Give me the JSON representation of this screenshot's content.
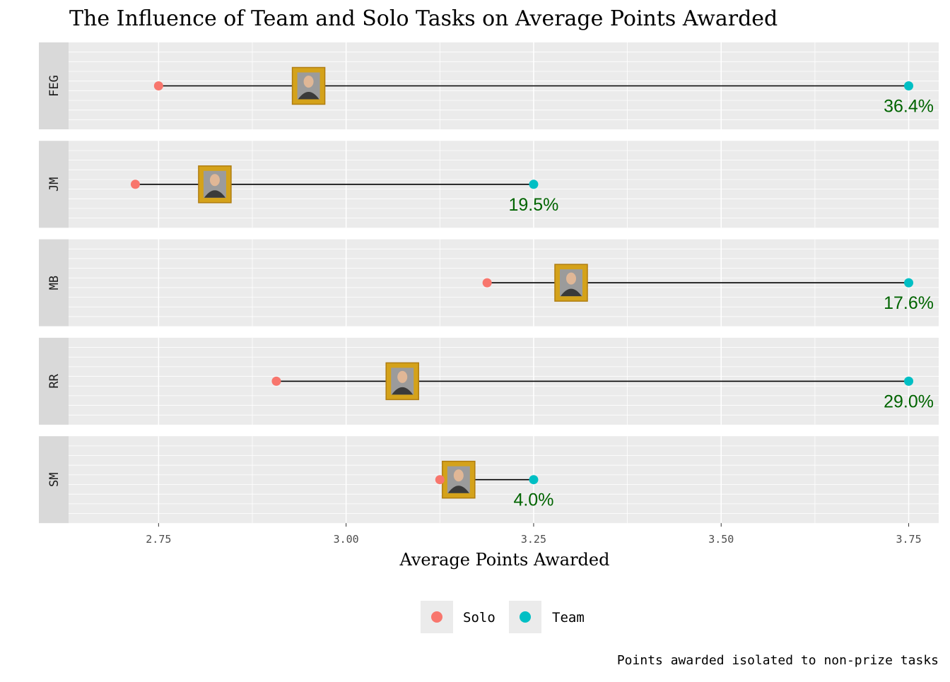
{
  "chart_data": {
    "type": "dumbbell",
    "title": "The Influence of Team and Solo Tasks on Average Points Awarded",
    "xlabel": "Average Points Awarded",
    "ylabel": "",
    "caption": "Points awarded isolated to non-prize tasks",
    "xlim": [
      2.63,
      3.79
    ],
    "x_ticks": [
      2.75,
      3.0,
      3.25,
      3.5,
      3.75
    ],
    "x_tick_labels": [
      "2.75",
      "3.00",
      "3.25",
      "3.50",
      "3.75"
    ],
    "grid": true,
    "legend_position": "bottom",
    "legend": [
      {
        "name": "Solo",
        "color": "#F8766D"
      },
      {
        "name": "Team",
        "color": "#00BFC4"
      }
    ],
    "panels": [
      {
        "label": "FEG",
        "solo": 2.75,
        "team": 3.75,
        "portrait": 2.95,
        "pct_label": "36.4%"
      },
      {
        "label": "JM",
        "solo": 2.719,
        "team": 3.25,
        "portrait": 2.825,
        "pct_label": "19.5%"
      },
      {
        "label": "MB",
        "solo": 3.188,
        "team": 3.75,
        "portrait": 3.3,
        "pct_label": "17.6%"
      },
      {
        "label": "RR",
        "solo": 2.907,
        "team": 3.75,
        "portrait": 3.075,
        "pct_label": "29.0%"
      },
      {
        "label": "SM",
        "solo": 3.125,
        "team": 3.25,
        "portrait": 3.15,
        "pct_label": "4.0%"
      }
    ]
  }
}
